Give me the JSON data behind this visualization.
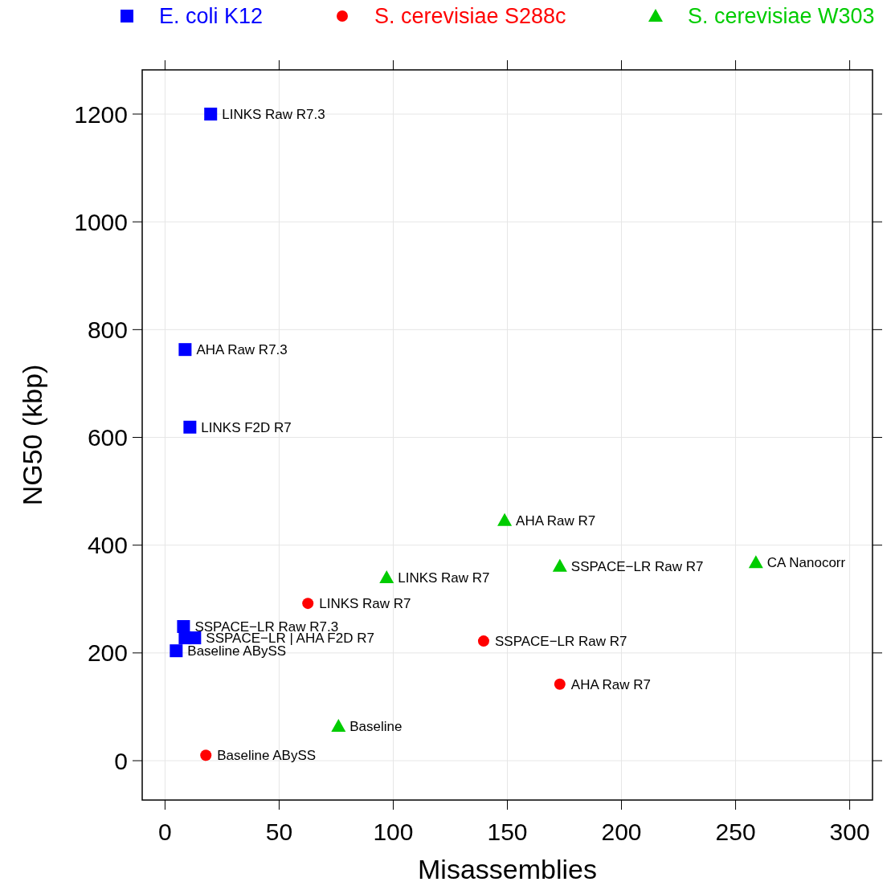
{
  "chart_data": {
    "type": "scatter",
    "xlabel": "Misassemblies",
    "ylabel": "NG50 (kbp)",
    "xlim": [
      -10,
      310
    ],
    "ylim": [
      -73,
      1282
    ],
    "xticks": [
      0,
      50,
      100,
      150,
      200,
      250,
      300
    ],
    "yticks": [
      0,
      200,
      400,
      600,
      800,
      1000,
      1200
    ],
    "grid": true,
    "legend": "top",
    "series": [
      {
        "name": "E. coli K12",
        "color": "#0000ff",
        "marker": "square",
        "x": [
          20,
          8.8,
          10.9,
          8.1,
          8.8,
          13,
          4.9
        ],
        "values": [
          1200,
          763,
          619,
          249,
          228,
          228,
          204
        ]
      },
      {
        "name": "S. cerevisiae S288c",
        "color": "#ff0000",
        "marker": "circle",
        "x": [
          62.6,
          139.6,
          173,
          17.9
        ],
        "values": [
          292,
          222,
          142,
          10
        ]
      },
      {
        "name": "S. cerevisiae W303",
        "color": "#00cc00",
        "marker": "triangle",
        "x": [
          148.8,
          97.1,
          173,
          258.9,
          76
        ],
        "values": [
          446,
          340,
          361,
          368,
          64
        ]
      }
    ],
    "annotations": [
      {
        "text": "LINKS Raw R7.3",
        "x": 20,
        "y": 1200
      },
      {
        "text": "AHA Raw R7.3",
        "x": 8.8,
        "y": 763
      },
      {
        "text": "LINKS F2D R7",
        "x": 10.9,
        "y": 619
      },
      {
        "text": "SSPACE−LR Raw R7.3",
        "x": 8.1,
        "y": 249
      },
      {
        "text": "SSPACE−LR | AHA F2D R7",
        "x": 13,
        "y": 228
      },
      {
        "text": "Baseline ABySS",
        "x": 4.9,
        "y": 204
      },
      {
        "text": "LINKS Raw R7",
        "x": 62.6,
        "y": 292
      },
      {
        "text": "SSPACE−LR Raw R7",
        "x": 139.6,
        "y": 222
      },
      {
        "text": "AHA Raw R7",
        "x": 173,
        "y": 142
      },
      {
        "text": "Baseline ABySS",
        "x": 17.9,
        "y": 10
      },
      {
        "text": "AHA Raw R7",
        "x": 148.8,
        "y": 446
      },
      {
        "text": "LINKS Raw R7",
        "x": 97.1,
        "y": 340
      },
      {
        "text": "SSPACE−LR Raw R7",
        "x": 173,
        "y": 361
      },
      {
        "text": "CA Nanocorr",
        "x": 258.9,
        "y": 368
      },
      {
        "text": "Baseline",
        "x": 76,
        "y": 64
      }
    ]
  }
}
